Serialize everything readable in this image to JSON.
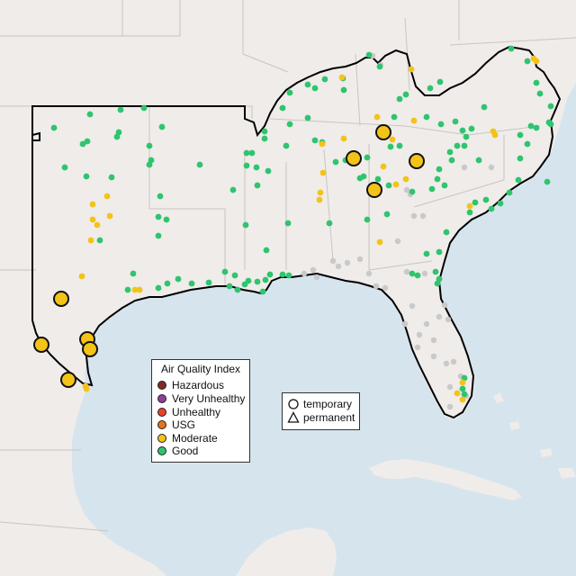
{
  "legend": {
    "title": "Air Quality Index",
    "categories": [
      {
        "label": "Hazardous",
        "color": "#7e2a2a"
      },
      {
        "label": "Very Unhealthy",
        "color": "#8f3f97"
      },
      {
        "label": "Unhealthy",
        "color": "#e8412a"
      },
      {
        "label": "USG",
        "color": "#e8721a"
      },
      {
        "label": "Moderate",
        "color": "#f3c317"
      },
      {
        "label": "Good",
        "color": "#2fc46e"
      }
    ]
  },
  "site_legend": {
    "temporary": "temporary",
    "permanent": "permanent"
  },
  "colors": {
    "water": "#d6e4ee",
    "land": "#efecea",
    "border": "#c8c5c2",
    "region_outline": "#000000",
    "gray_site": "#c9c9c9"
  }
}
